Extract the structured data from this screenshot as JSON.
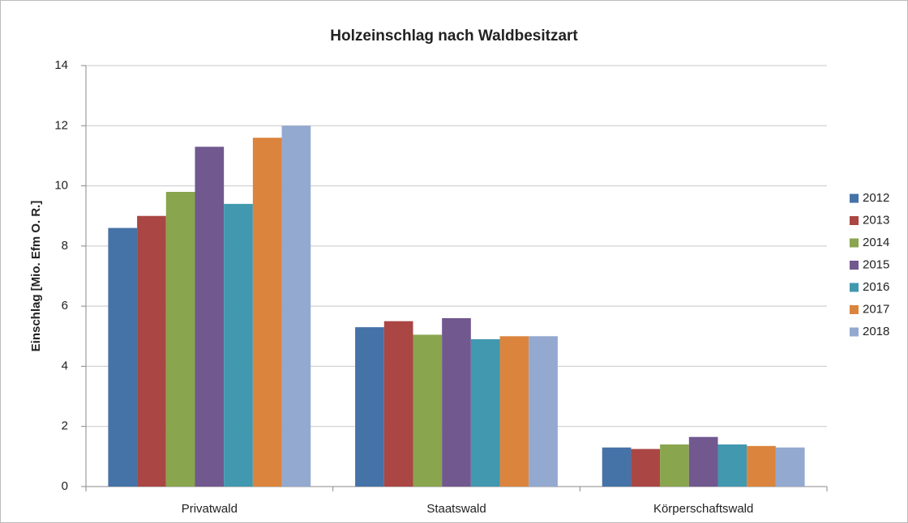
{
  "chart_data": {
    "type": "bar",
    "title": "Holzeinschlag nach Waldbesitzart",
    "ylabel": "Einschlag [Mio. Efm O. R.]",
    "categories": [
      "Privatwald",
      "Staatswald",
      "Körperschaftswald"
    ],
    "series": [
      {
        "name": "2012",
        "color": "#4572a7",
        "values": [
          8.6,
          5.3,
          1.3
        ]
      },
      {
        "name": "2013",
        "color": "#aa4643",
        "values": [
          9.0,
          5.5,
          1.25
        ]
      },
      {
        "name": "2014",
        "color": "#89a54e",
        "values": [
          9.8,
          5.05,
          1.4
        ]
      },
      {
        "name": "2015",
        "color": "#71588f",
        "values": [
          11.3,
          5.6,
          1.65
        ]
      },
      {
        "name": "2016",
        "color": "#4198af",
        "values": [
          9.4,
          4.9,
          1.4
        ]
      },
      {
        "name": "2017",
        "color": "#db843d",
        "values": [
          11.6,
          5.0,
          1.35
        ]
      },
      {
        "name": "2018",
        "color": "#93a9cf",
        "values": [
          12.0,
          5.0,
          1.3
        ]
      }
    ],
    "ylim": [
      0,
      14
    ],
    "yticks": [
      0,
      2,
      4,
      6,
      8,
      10,
      12,
      14
    ],
    "grid": true,
    "legend": "right"
  }
}
